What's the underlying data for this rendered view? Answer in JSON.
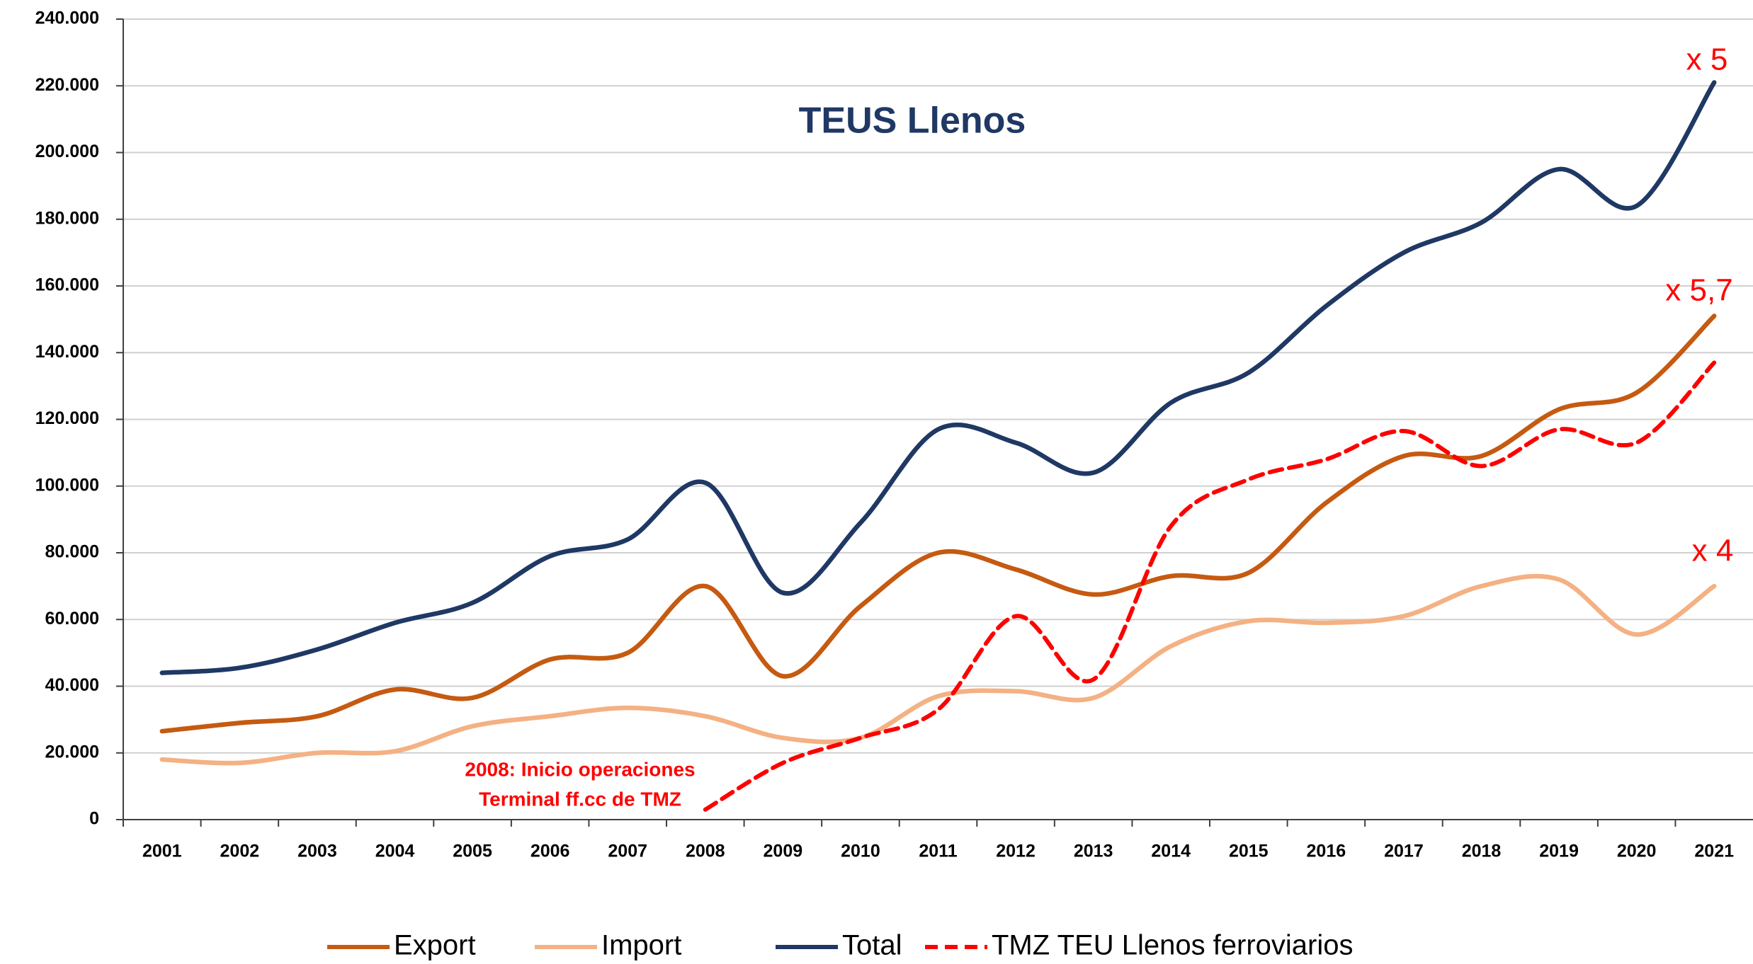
{
  "chart_data": {
    "type": "line",
    "title": "TEUS Llenos",
    "categories": [
      "2001",
      "2002",
      "2003",
      "2004",
      "2005",
      "2006",
      "2007",
      "2008",
      "2009",
      "2010",
      "2011",
      "2012",
      "2013",
      "2014",
      "2015",
      "2016",
      "2017",
      "2018",
      "2019",
      "2020",
      "2021"
    ],
    "series": [
      {
        "name": "Export",
        "color": "#c55a11",
        "values": [
          26500,
          29000,
          31000,
          39000,
          36500,
          48000,
          50000,
          70000,
          43000,
          64000,
          80000,
          75000,
          67500,
          73000,
          74000,
          95000,
          109000,
          109000,
          123000,
          128000,
          151000
        ]
      },
      {
        "name": "Import",
        "color": "#f4b183",
        "values": [
          18000,
          17000,
          20000,
          20500,
          28000,
          31000,
          33500,
          31000,
          24500,
          24500,
          37000,
          38500,
          36500,
          52000,
          59500,
          59000,
          61000,
          70000,
          72000,
          55500,
          70000
        ]
      },
      {
        "name": "Total",
        "color": "#1f3864",
        "values": [
          44000,
          45500,
          51000,
          59000,
          65000,
          79000,
          84000,
          101000,
          68000,
          89000,
          117000,
          113000,
          104000,
          125000,
          134000,
          154000,
          170000,
          179000,
          195000,
          184000,
          221000
        ]
      },
      {
        "name": "TMZ TEU Llenos ferroviarios",
        "color": "#ff0000",
        "dashed": true,
        "values": [
          null,
          null,
          null,
          null,
          null,
          null,
          null,
          3000,
          17000,
          24500,
          33000,
          61000,
          42000,
          88000,
          102000,
          108000,
          116500,
          106000,
          117000,
          113000,
          137000
        ]
      }
    ],
    "ylim": [
      0,
      240000
    ],
    "yticks": [
      0,
      {
        "value": 20000,
        "label": "20.000"
      },
      {
        "value": 40000,
        "label": "40.000"
      },
      {
        "value": 60000,
        "label": "60.000"
      },
      {
        "value": 80000,
        "label": "80.000"
      },
      {
        "value": 100000,
        "label": "100.000"
      },
      {
        "value": 120000,
        "label": "120.000"
      },
      {
        "value": 140000,
        "label": "140.000"
      },
      {
        "value": 160000,
        "label": "160.000"
      },
      {
        "value": 180000,
        "label": "180.000"
      },
      {
        "value": 200000,
        "label": "200.000"
      },
      {
        "value": 220000,
        "label": "220.000"
      },
      {
        "value": 240000,
        "label": "240.000"
      }
    ],
    "grid": true,
    "annotations": [
      "x 5",
      "x 5,7",
      "x 4",
      "2008: Inicio operaciones",
      "Terminal ff.cc de TMZ"
    ],
    "legend": "bottom"
  }
}
